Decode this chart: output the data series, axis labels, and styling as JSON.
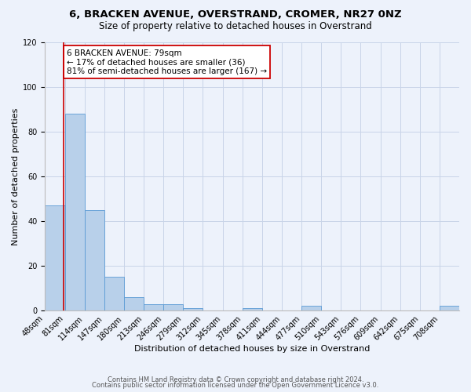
{
  "title_line1": "6, BRACKEN AVENUE, OVERSTRAND, CROMER, NR27 0NZ",
  "title_line2": "Size of property relative to detached houses in Overstrand",
  "xlabel": "Distribution of detached houses by size in Overstrand",
  "ylabel": "Number of detached properties",
  "bin_labels": [
    "48sqm",
    "81sqm",
    "114sqm",
    "147sqm",
    "180sqm",
    "213sqm",
    "246sqm",
    "279sqm",
    "312sqm",
    "345sqm",
    "378sqm",
    "411sqm",
    "444sqm",
    "477sqm",
    "510sqm",
    "543sqm",
    "576sqm",
    "609sqm",
    "642sqm",
    "675sqm",
    "708sqm"
  ],
  "bar_values": [
    47,
    88,
    45,
    15,
    6,
    3,
    3,
    1,
    0,
    0,
    1,
    0,
    0,
    2,
    0,
    0,
    0,
    0,
    0,
    0,
    2
  ],
  "bar_color": "#b8d0ea",
  "bar_edge_color": "#5b9bd5",
  "property_line_color": "#cc0000",
  "annotation_box_text": "6 BRACKEN AVENUE: 79sqm\n← 17% of detached houses are smaller (36)\n81% of semi-detached houses are larger (167) →",
  "annotation_box_edge_color": "#cc0000",
  "ylim": [
    0,
    120
  ],
  "yticks": [
    0,
    20,
    40,
    60,
    80,
    100,
    120
  ],
  "footer_line1": "Contains HM Land Registry data © Crown copyright and database right 2024.",
  "footer_line2": "Contains public sector information licensed under the Open Government Licence v3.0.",
  "bg_color": "#edf2fb",
  "plot_bg_color": "#edf2fb",
  "grid_color": "#c8d4e8",
  "title_fontsize": 9.5,
  "subtitle_fontsize": 8.5,
  "axis_label_fontsize": 8,
  "tick_fontsize": 7,
  "annotation_fontsize": 7.5,
  "footer_fontsize": 6
}
